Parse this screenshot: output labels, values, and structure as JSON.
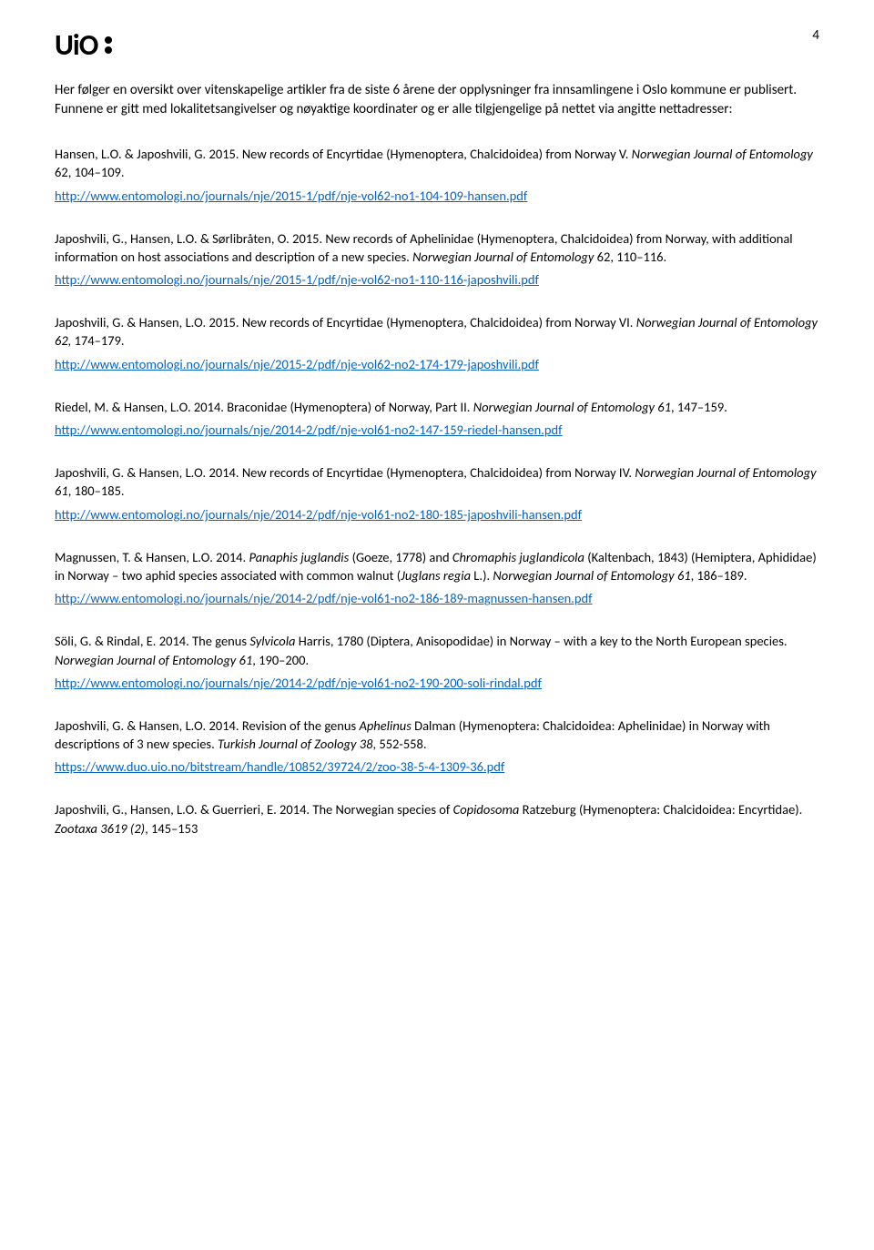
{
  "header": {
    "logo_text": "UiO",
    "page_number": "4"
  },
  "intro": "Her følger en oversikt over vitenskapelige artikler fra de siste 6 årene der opplysninger fra innsamlingene i Oslo kommune er publisert. Funnene er gitt med lokalitetsangivelser og nøyaktige koordinater og er alle tilgjengelige på nettet via angitte nettadresser:",
  "references": [
    {
      "citation_pre": "Hansen, L.O. & Japoshvili, G. 2015. New records of Encyrtidae (Hymenoptera, Chalcidoidea) from Norway V. ",
      "journal": "Norwegian Journal of Entomology",
      "citation_post": " 62, 104–109.",
      "url": "http://www.entomologi.no/journals/nje/2015-1/pdf/nje-vol62-no1-104-109-hansen.pdf"
    },
    {
      "citation_pre": "Japoshvili, G., Hansen, L.O. & Sørlibråten, O. 2015. New records of Aphelinidae (Hymenoptera, Chalcidoidea) from Norway, with additional information on host associations and description of a new species. ",
      "journal": "Norwegian Journal of Entomology",
      "citation_post": " 62, 110–116.",
      "url": "http://www.entomologi.no/journals/nje/2015-1/pdf/nje-vol62-no1-110-116-japoshvili.pdf"
    },
    {
      "citation_pre": "Japoshvili, G. & Hansen, L.O. 2015. New records of Encyrtidae (Hymenoptera, Chalcidoidea) from Norway VI. ",
      "journal": "Norwegian Journal of Entomology 62,",
      "citation_post": " 174–179.",
      "url": "http://www.entomologi.no/journals/nje/2015-2/pdf/nje-vol62-no2-174-179-japoshvili.pdf"
    },
    {
      "citation_pre": "Riedel, M. & Hansen, L.O. 2014. Braconidae (Hymenoptera) of Norway, Part II. ",
      "journal": "Norwegian Journal of Entomology 61",
      "citation_post": ", 147–159.",
      "url": "http://www.entomologi.no/journals/nje/2014-2/pdf/nje-vol61-no2-147-159-riedel-hansen.pdf"
    },
    {
      "citation_pre": "Japoshvili, G. & Hansen, L.O. 2014. New records of Encyrtidae (Hymenoptera, Chalcidoidea) from Norway IV. ",
      "journal": "Norwegian Journal of Entomology 61",
      "citation_post": ", 180–185.",
      "url": "http://www.entomologi.no/journals/nje/2014-2/pdf/nje-vol61-no2-180-185-japoshvili-hansen.pdf"
    },
    {
      "citation_pre": "Magnussen, T. & Hansen, L.O. 2014. ",
      "species1": "Panaphis juglandis",
      "mid1": " (Goeze, 1778) and ",
      "species2": "Chromaphis juglandicola",
      "mid2": " (Kaltenbach, 1843) (Hemiptera, Aphididae) in Norway – two aphid species associated with common walnut (",
      "species3": "Juglans regia",
      "mid3": " L.). ",
      "journal": "Norwegian Journal of Entomology 61",
      "citation_post": ", 186–189.",
      "url": "http://www.entomologi.no/journals/nje/2014-2/pdf/nje-vol61-no2-186-189-magnussen-hansen.pdf"
    },
    {
      "citation_pre": "Söli, G. & Rindal, E. 2014. The genus ",
      "species1": "Sylvicola",
      "mid1": " Harris, 1780 (Diptera, Anisopodidae) in Norway – with a key to the North European species. ",
      "journal": "Norwegian Journal of Entomology 61",
      "citation_post": ", 190–200.",
      "url": "http://www.entomologi.no/journals/nje/2014-2/pdf/nje-vol61-no2-190-200-soli-rindal.pdf"
    },
    {
      "citation_pre": "Japoshvili, G. & Hansen, L.O. 2014. Revision of the genus ",
      "species1": "Aphelinus",
      "mid1": " Dalman (Hymenoptera: Chalcidoidea: Aphelinidae) in Norway with descriptions of 3 new species. ",
      "journal": "Turkish Journal of Zoology 38",
      "citation_post": ", 552-558.",
      "url": "https://www.duo.uio.no/bitstream/handle/10852/39724/2/zoo-38-5-4-1309-36.pdf"
    },
    {
      "citation_pre": "Japoshvili, G., Hansen, L.O. & Guerrieri, E. 2014.  The Norwegian species of ",
      "species1": "Copidosoma",
      "mid1": " Ratzeburg (Hymenoptera: Chalcidoidea: Encyrtidae). ",
      "journal": "Zootaxa 3619 (2)",
      "citation_post": ", 145–153",
      "url": ""
    }
  ],
  "colors": {
    "link": "#0563c1",
    "text": "#000000",
    "background": "#ffffff"
  }
}
